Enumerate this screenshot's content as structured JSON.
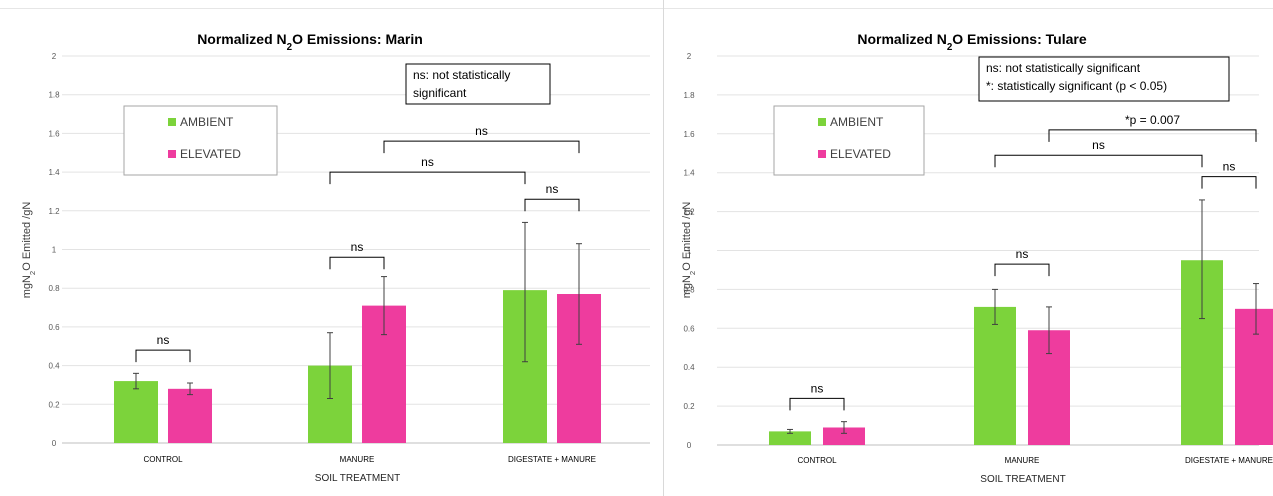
{
  "chart_data": [
    {
      "type": "bar",
      "title_prefix": "Normalized N",
      "title_sub": "2",
      "title_suffix": "O Emissions: Marin",
      "ylabel_prefix": "mgN",
      "ylabel_sub": "2",
      "ylabel_suffix": "O Emitted /gN",
      "xlabel": "SOIL TREATMENT",
      "categories": [
        "CONTROL",
        "MANURE",
        "DIGESTATE + MANURE"
      ],
      "series": [
        {
          "name": "AMBIENT",
          "color": "#7cd33b",
          "values": [
            0.32,
            0.4,
            0.79
          ],
          "err_low": [
            0.28,
            0.23,
            0.42
          ],
          "err_high": [
            0.36,
            0.57,
            1.14
          ]
        },
        {
          "name": "ELEVATED",
          "color": "#ee3c9e",
          "values": [
            0.28,
            0.71,
            0.77
          ],
          "err_low": [
            0.25,
            0.56,
            0.51
          ],
          "err_high": [
            0.31,
            0.86,
            1.03
          ]
        }
      ],
      "ylim": [
        0,
        2
      ],
      "yticks": [
        "0",
        "0.2",
        "0.4",
        "0.6",
        "0.8",
        "1",
        "1.2",
        "1.4",
        "1.6",
        "1.8",
        "2"
      ],
      "grid": true,
      "legend": "top-left",
      "note_lines": [
        "ns: not statistically",
        "significant"
      ],
      "brackets": [
        {
          "from": [
            0,
            0
          ],
          "to": [
            0,
            1
          ],
          "level": 0.48,
          "label": "ns"
        },
        {
          "from": [
            1,
            0
          ],
          "to": [
            1,
            1
          ],
          "level": 0.96,
          "label": "ns"
        },
        {
          "from": [
            2,
            0
          ],
          "to": [
            2,
            1
          ],
          "level": 1.26,
          "label": "ns"
        },
        {
          "from": [
            1,
            0
          ],
          "to": [
            2,
            0
          ],
          "level": 1.4,
          "label": "ns"
        },
        {
          "from": [
            1,
            1
          ],
          "to": [
            2,
            1
          ],
          "level": 1.56,
          "label": "ns"
        }
      ]
    },
    {
      "type": "bar",
      "title_prefix": "Normalized N",
      "title_sub": "2",
      "title_suffix": "O Emissions: Tulare",
      "ylabel_prefix": "mgN",
      "ylabel_sub": "2",
      "ylabel_suffix": "O Emitted /gN",
      "xlabel": "SOIL TREATMENT",
      "categories": [
        "CONTROL",
        "MANURE",
        "DIGESTATE + MANURE"
      ],
      "series": [
        {
          "name": "AMBIENT",
          "color": "#7cd33b",
          "values": [
            0.07,
            0.71,
            0.95
          ],
          "err_low": [
            0.06,
            0.62,
            0.65
          ],
          "err_high": [
            0.08,
            0.8,
            1.26
          ]
        },
        {
          "name": "ELEVATED",
          "color": "#ee3c9e",
          "values": [
            0.09,
            0.59,
            0.7
          ],
          "err_low": [
            0.06,
            0.47,
            0.57
          ],
          "err_high": [
            0.12,
            0.71,
            0.83
          ]
        }
      ],
      "ylim": [
        0,
        2
      ],
      "yticks": [
        "0",
        "0.2",
        "0.4",
        "0.6",
        "0.8",
        "1",
        "1.2",
        "1.4",
        "1.6",
        "1.8",
        "2"
      ],
      "grid": true,
      "legend": "top-left",
      "note_lines": [
        "ns: not statistically significant",
        "*: statistically significant (p < 0.05)"
      ],
      "brackets": [
        {
          "from": [
            0,
            0
          ],
          "to": [
            0,
            1
          ],
          "level": 0.24,
          "label": "ns"
        },
        {
          "from": [
            1,
            0
          ],
          "to": [
            1,
            1
          ],
          "level": 0.93,
          "label": "ns"
        },
        {
          "from": [
            2,
            0
          ],
          "to": [
            2,
            1
          ],
          "level": 1.38,
          "label": "ns"
        },
        {
          "from": [
            1,
            0
          ],
          "to": [
            2,
            0
          ],
          "level": 1.49,
          "label": "ns"
        },
        {
          "from": [
            1,
            1
          ],
          "to": [
            2,
            1
          ],
          "level": 1.62,
          "label": "*p = 0.007"
        }
      ]
    }
  ]
}
